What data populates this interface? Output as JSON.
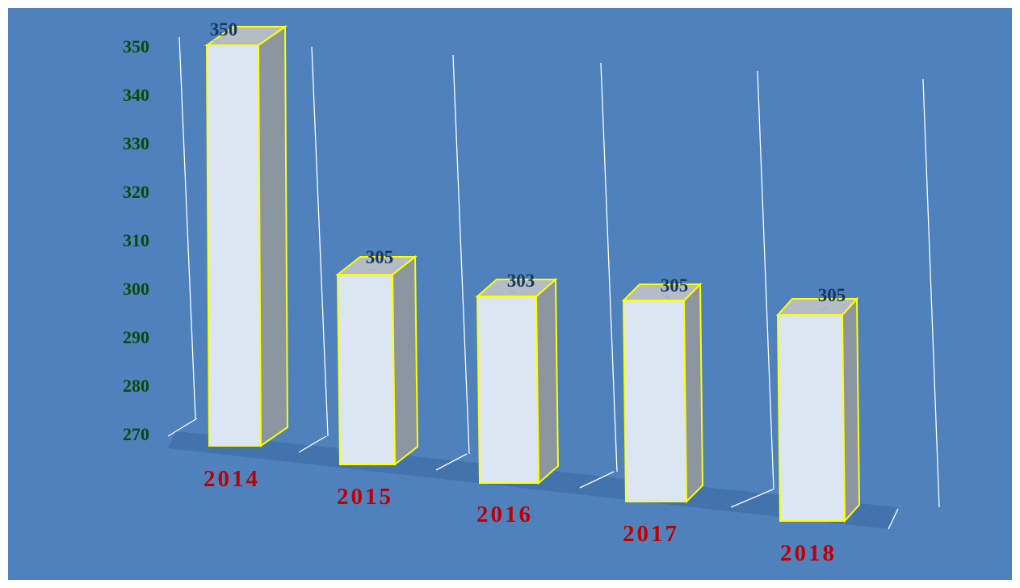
{
  "chart_data": {
    "type": "bar",
    "categories": [
      "2014",
      "2015",
      "2016",
      "2017",
      "2018"
    ],
    "values": [
      350,
      305,
      303,
      305,
      305
    ],
    "data_labels": [
      "350",
      "305",
      "303",
      "305",
      "305"
    ],
    "y_ticks": [
      "350",
      "340",
      "330",
      "320",
      "310",
      "300",
      "290",
      "280",
      "270"
    ],
    "ylim": [
      270,
      350
    ],
    "title": "",
    "xlabel": "",
    "ylabel": "",
    "grid": false,
    "style": "3d-column",
    "colors": {
      "background": "#4f81bd",
      "bar_front": "#dce6f2",
      "bar_side": "#8c96a0",
      "bar_top": "#b4bcc6",
      "bar_outline": "#ffff00",
      "floor": "#3f6fa8",
      "guide_lines": "#ffffff",
      "category_labels": "#c00000",
      "value_labels": "#17375e",
      "axis_labels": "#0a4a0a"
    }
  }
}
